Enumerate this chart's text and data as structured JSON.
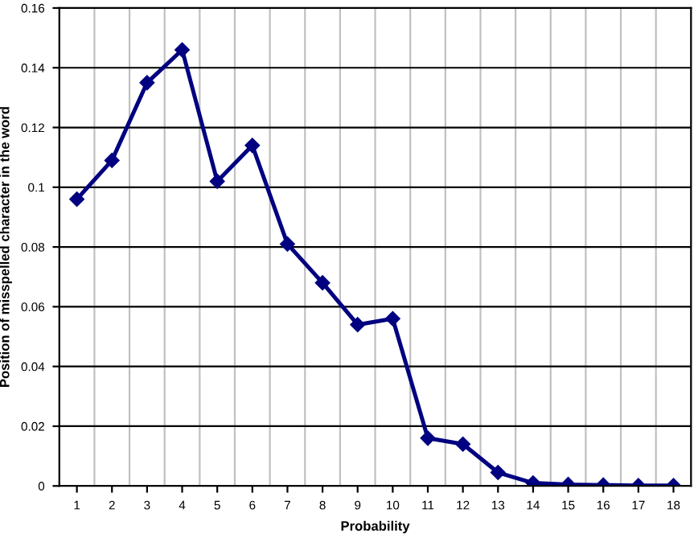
{
  "chart_data": {
    "type": "line",
    "xlabel": "Probability",
    "ylabel": "Position of misspelled character in the word",
    "categories": [
      "1",
      "2",
      "3",
      "4",
      "5",
      "6",
      "7",
      "8",
      "9",
      "10",
      "11",
      "12",
      "13",
      "14",
      "15",
      "16",
      "17",
      "18"
    ],
    "series": [
      {
        "color": "#000080",
        "values": [
          0.096,
          0.109,
          0.135,
          0.146,
          0.102,
          0.114,
          0.081,
          0.068,
          0.054,
          0.056,
          0.016,
          0.014,
          0.0045,
          0.001,
          0.0005,
          0.0003,
          0.0001,
          0.0001
        ]
      }
    ],
    "ylim": [
      0,
      0.16
    ],
    "yticks": [
      0,
      0.02,
      0.04,
      0.06,
      0.08,
      0.1,
      0.12,
      0.14,
      0.16
    ],
    "grid": true,
    "marker": "diamond",
    "line_style": "solid"
  }
}
